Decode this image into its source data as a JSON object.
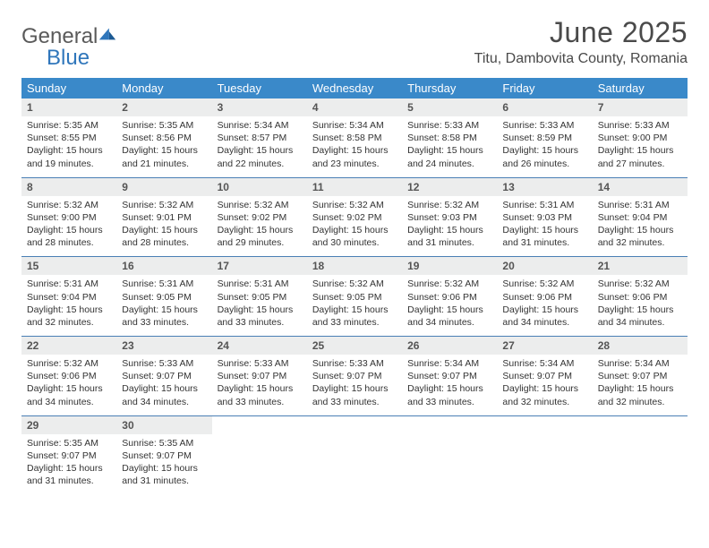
{
  "logo": {
    "word1": "General",
    "word2": "Blue"
  },
  "title": "June 2025",
  "subtitle": "Titu, Dambovita County, Romania",
  "colors": {
    "header_bg": "#3a89c9",
    "header_fg": "#ffffff",
    "daynum_bg": "#eceded",
    "daynum_fg": "#555555",
    "rule": "#4a7fb5",
    "logo_gray": "#5a5a5a",
    "logo_blue": "#2f76bb"
  },
  "day_headers": [
    "Sunday",
    "Monday",
    "Tuesday",
    "Wednesday",
    "Thursday",
    "Friday",
    "Saturday"
  ],
  "weeks": [
    [
      {
        "num": "1",
        "sunrise": "5:35 AM",
        "sunset": "8:55 PM",
        "daylight": "15 hours and 19 minutes."
      },
      {
        "num": "2",
        "sunrise": "5:35 AM",
        "sunset": "8:56 PM",
        "daylight": "15 hours and 21 minutes."
      },
      {
        "num": "3",
        "sunrise": "5:34 AM",
        "sunset": "8:57 PM",
        "daylight": "15 hours and 22 minutes."
      },
      {
        "num": "4",
        "sunrise": "5:34 AM",
        "sunset": "8:58 PM",
        "daylight": "15 hours and 23 minutes."
      },
      {
        "num": "5",
        "sunrise": "5:33 AM",
        "sunset": "8:58 PM",
        "daylight": "15 hours and 24 minutes."
      },
      {
        "num": "6",
        "sunrise": "5:33 AM",
        "sunset": "8:59 PM",
        "daylight": "15 hours and 26 minutes."
      },
      {
        "num": "7",
        "sunrise": "5:33 AM",
        "sunset": "9:00 PM",
        "daylight": "15 hours and 27 minutes."
      }
    ],
    [
      {
        "num": "8",
        "sunrise": "5:32 AM",
        "sunset": "9:00 PM",
        "daylight": "15 hours and 28 minutes."
      },
      {
        "num": "9",
        "sunrise": "5:32 AM",
        "sunset": "9:01 PM",
        "daylight": "15 hours and 28 minutes."
      },
      {
        "num": "10",
        "sunrise": "5:32 AM",
        "sunset": "9:02 PM",
        "daylight": "15 hours and 29 minutes."
      },
      {
        "num": "11",
        "sunrise": "5:32 AM",
        "sunset": "9:02 PM",
        "daylight": "15 hours and 30 minutes."
      },
      {
        "num": "12",
        "sunrise": "5:32 AM",
        "sunset": "9:03 PM",
        "daylight": "15 hours and 31 minutes."
      },
      {
        "num": "13",
        "sunrise": "5:31 AM",
        "sunset": "9:03 PM",
        "daylight": "15 hours and 31 minutes."
      },
      {
        "num": "14",
        "sunrise": "5:31 AM",
        "sunset": "9:04 PM",
        "daylight": "15 hours and 32 minutes."
      }
    ],
    [
      {
        "num": "15",
        "sunrise": "5:31 AM",
        "sunset": "9:04 PM",
        "daylight": "15 hours and 32 minutes."
      },
      {
        "num": "16",
        "sunrise": "5:31 AM",
        "sunset": "9:05 PM",
        "daylight": "15 hours and 33 minutes."
      },
      {
        "num": "17",
        "sunrise": "5:31 AM",
        "sunset": "9:05 PM",
        "daylight": "15 hours and 33 minutes."
      },
      {
        "num": "18",
        "sunrise": "5:32 AM",
        "sunset": "9:05 PM",
        "daylight": "15 hours and 33 minutes."
      },
      {
        "num": "19",
        "sunrise": "5:32 AM",
        "sunset": "9:06 PM",
        "daylight": "15 hours and 34 minutes."
      },
      {
        "num": "20",
        "sunrise": "5:32 AM",
        "sunset": "9:06 PM",
        "daylight": "15 hours and 34 minutes."
      },
      {
        "num": "21",
        "sunrise": "5:32 AM",
        "sunset": "9:06 PM",
        "daylight": "15 hours and 34 minutes."
      }
    ],
    [
      {
        "num": "22",
        "sunrise": "5:32 AM",
        "sunset": "9:06 PM",
        "daylight": "15 hours and 34 minutes."
      },
      {
        "num": "23",
        "sunrise": "5:33 AM",
        "sunset": "9:07 PM",
        "daylight": "15 hours and 34 minutes."
      },
      {
        "num": "24",
        "sunrise": "5:33 AM",
        "sunset": "9:07 PM",
        "daylight": "15 hours and 33 minutes."
      },
      {
        "num": "25",
        "sunrise": "5:33 AM",
        "sunset": "9:07 PM",
        "daylight": "15 hours and 33 minutes."
      },
      {
        "num": "26",
        "sunrise": "5:34 AM",
        "sunset": "9:07 PM",
        "daylight": "15 hours and 33 minutes."
      },
      {
        "num": "27",
        "sunrise": "5:34 AM",
        "sunset": "9:07 PM",
        "daylight": "15 hours and 32 minutes."
      },
      {
        "num": "28",
        "sunrise": "5:34 AM",
        "sunset": "9:07 PM",
        "daylight": "15 hours and 32 minutes."
      }
    ],
    [
      {
        "num": "29",
        "sunrise": "5:35 AM",
        "sunset": "9:07 PM",
        "daylight": "15 hours and 31 minutes."
      },
      {
        "num": "30",
        "sunrise": "5:35 AM",
        "sunset": "9:07 PM",
        "daylight": "15 hours and 31 minutes."
      },
      null,
      null,
      null,
      null,
      null
    ]
  ],
  "labels": {
    "sunrise": "Sunrise:",
    "sunset": "Sunset:",
    "daylight": "Daylight:"
  }
}
